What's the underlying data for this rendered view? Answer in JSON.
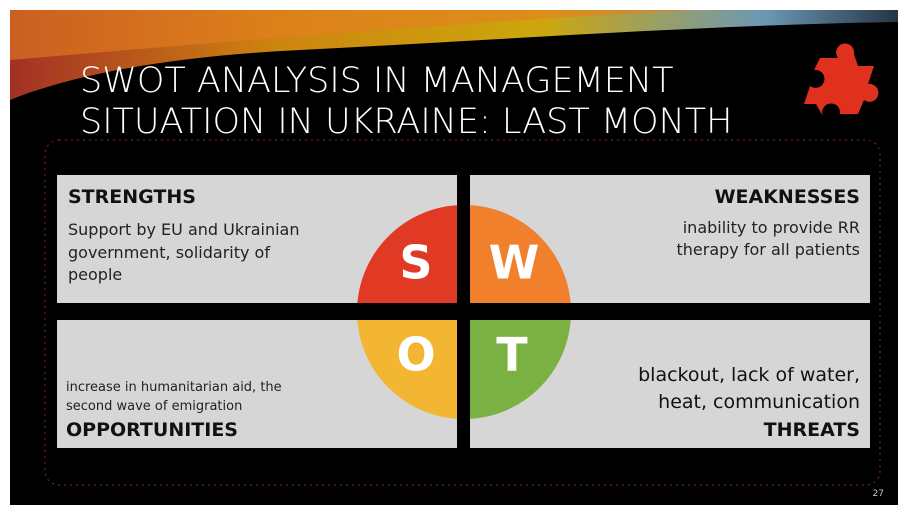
{
  "title": {
    "lines": [
      "SWOT ANALYSIS IN MANAGEMENT",
      "SITUATION IN UKRAINE: LAST MONTH"
    ]
  },
  "quadrants": {
    "strengths": {
      "heading": "STRENGTHS",
      "letter": "S",
      "lines": [
        "Support by EU and Ukrainian",
        "government, solidarity of",
        "people"
      ]
    },
    "weaknesses": {
      "heading": "WEAKNESSES",
      "letter": "W",
      "lines": [
        "inability to provide RR",
        "therapy for all patients"
      ]
    },
    "opportunities": {
      "heading": "OPPORTUNITIES",
      "letter": "O",
      "lines": [
        "increase in humanitarian aid, the",
        "second wave of emigration"
      ]
    },
    "threats": {
      "heading": "THREATS",
      "letter": "T",
      "lines": [
        "blackout, lack of water,",
        "heat, communication"
      ]
    }
  },
  "page_number": "27"
}
